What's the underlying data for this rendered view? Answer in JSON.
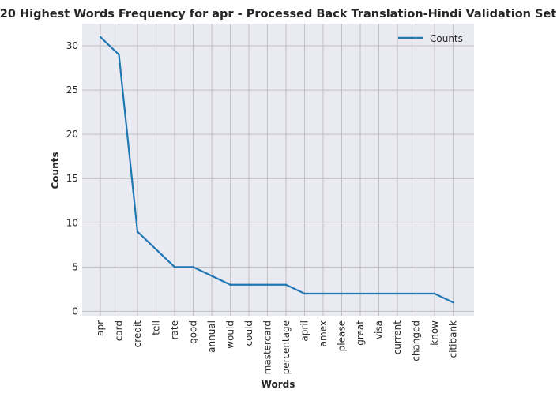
{
  "chart_data": {
    "type": "line",
    "title": "20 Highest Words Frequency for apr - Processed Back Translation-Hindi Validation Set",
    "xlabel": "Words",
    "ylabel": "Counts",
    "categories": [
      "apr",
      "card",
      "credit",
      "tell",
      "rate",
      "good",
      "annual",
      "would",
      "could",
      "mastercard",
      "percentage",
      "april",
      "amex",
      "please",
      "great",
      "visa",
      "current",
      "changed",
      "know",
      "citibank"
    ],
    "series": [
      {
        "name": "Counts",
        "values": [
          31,
          29,
          9,
          7,
          5,
          5,
          4,
          3,
          3,
          3,
          3,
          2,
          2,
          2,
          2,
          2,
          2,
          2,
          2,
          1
        ],
        "color": "#1f77b4"
      }
    ],
    "ylim": [
      -0.5,
      32.5
    ],
    "yticks": [
      0,
      5,
      10,
      15,
      20,
      25,
      30
    ],
    "grid": true,
    "legend_position": "top-right",
    "colors": {
      "plot_bg": "#eaeaf2",
      "grid": "#c0c0c0",
      "line": "#1f77b4"
    }
  }
}
